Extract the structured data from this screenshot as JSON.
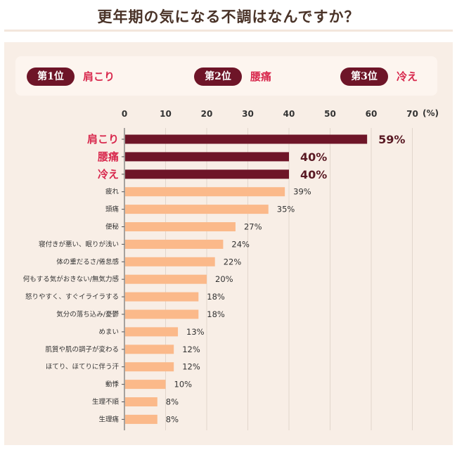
{
  "page": {
    "title": "更年期の気になる不調はなんですか？"
  },
  "ranking": [
    {
      "badge": "第1位",
      "label": "肩こり"
    },
    {
      "badge": "第2位",
      "label": "腰痛"
    },
    {
      "badge": "第3位",
      "label": "冷え"
    }
  ],
  "colors": {
    "top_bar": "#6e1528",
    "other_bar": "#fbb98a",
    "top_label": "#d8284d",
    "value_top": "#5a1a24",
    "value_other": "#333333"
  },
  "chart_data": {
    "type": "bar",
    "orientation": "horizontal",
    "unit": "(%)",
    "xlim": [
      0,
      70
    ],
    "ticks": [
      0,
      10,
      20,
      30,
      40,
      50,
      60,
      70
    ],
    "grid": true,
    "categories": [
      "肩こり",
      "腰痛",
      "冷え",
      "疲れ",
      "頭痛",
      "便秘",
      "寝付きが悪い、眠りが浅い",
      "体の重だるさ/倦怠感",
      "何もする気がおきない/無気力感",
      "怒りやすく、すぐイライラする",
      "気分の落ち込み/憂鬱",
      "めまい",
      "肌質や肌の調子が変わる",
      "ほてり、ほてりに伴う汗",
      "動悸",
      "生理不順",
      "生理痛"
    ],
    "values": [
      59,
      40,
      40,
      39,
      35,
      27,
      24,
      22,
      20,
      18,
      18,
      13,
      12,
      12,
      10,
      8,
      8
    ],
    "value_labels": [
      "59%",
      "40%",
      "40%",
      "39%",
      "35%",
      "27%",
      "24%",
      "22%",
      "20%",
      "18%",
      "18%",
      "13%",
      "12%",
      "12%",
      "10%",
      "8%",
      "8%"
    ],
    "highlight_top": 3
  }
}
